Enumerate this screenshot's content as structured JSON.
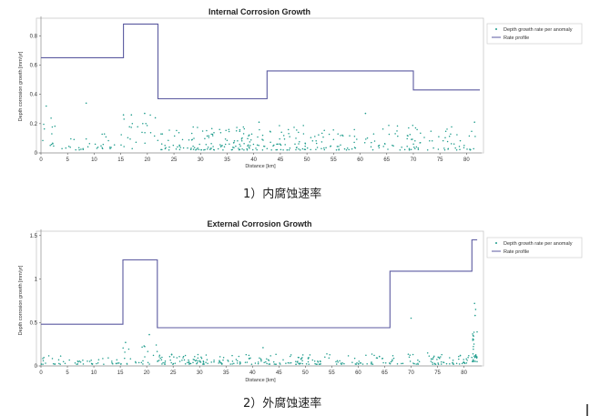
{
  "captions": [
    "1）内腐蚀速率",
    "2）外腐蚀速率"
  ],
  "chart_data": [
    {
      "type": "scatter",
      "title": "Internal Corrosion Growth",
      "xlabel": "Distance [km]",
      "ylabel": "Depth corrosion growth [mm/yr]",
      "xlim": [
        0,
        82.5
      ],
      "ylim": [
        0,
        0.92
      ],
      "xticks": [
        0,
        5,
        10,
        15,
        20,
        25,
        30,
        35,
        40,
        45,
        50,
        55,
        60,
        65,
        70,
        75,
        80
      ],
      "xtick_labels": [
        "0",
        "5",
        "10",
        "15",
        "20",
        "25",
        "30",
        "35",
        "40",
        "45",
        "50",
        "55",
        "60",
        "65",
        "70",
        "75",
        "80"
      ],
      "yticks": [
        0,
        0.2,
        0.4,
        0.6,
        0.8
      ],
      "ytick_labels": [
        "0",
        "0.2",
        "0.4",
        "0.6",
        "0.8"
      ],
      "legend": [
        "Depth growth rate per anomaly",
        "Rate profile"
      ],
      "legend_position": "right",
      "colors": {
        "scatter": "#1e9c8c",
        "profile": "#5b5aa0"
      },
      "rate_profile": {
        "x": [
          0,
          15.5,
          15.5,
          22,
          22,
          42.5,
          42.5,
          70,
          70,
          82.5
        ],
        "y": [
          0.65,
          0.65,
          0.88,
          0.88,
          0.37,
          0.37,
          0.56,
          0.56,
          0.43,
          0.43
        ]
      },
      "scatter_clusters": [
        [
          0,
          3,
          0.04,
          0.24,
          12
        ],
        [
          3,
          9,
          0.02,
          0.12,
          14
        ],
        [
          9,
          15,
          0.03,
          0.14,
          16
        ],
        [
          15,
          22,
          0.03,
          0.26,
          22
        ],
        [
          22,
          28,
          0.02,
          0.16,
          26
        ],
        [
          28,
          42,
          0.02,
          0.18,
          110
        ],
        [
          42,
          50,
          0.02,
          0.2,
          50
        ],
        [
          50,
          60,
          0.02,
          0.16,
          45
        ],
        [
          60,
          70,
          0.02,
          0.2,
          40
        ],
        [
          70,
          82,
          0.02,
          0.2,
          50
        ]
      ],
      "scatter_extra": [
        [
          1,
          0.32
        ],
        [
          8.5,
          0.34
        ],
        [
          15.5,
          0.26
        ],
        [
          17,
          0.26
        ],
        [
          19.5,
          0.27
        ],
        [
          21.5,
          0.24
        ],
        [
          41,
          0.21
        ],
        [
          61,
          0.27
        ],
        [
          81.5,
          0.21
        ]
      ]
    },
    {
      "type": "scatter",
      "title": "External Corrosion Growth",
      "xlabel": "Distance [km]",
      "ylabel": "Depth corrosion growth [mm/yr]",
      "xlim": [
        0,
        83
      ],
      "ylim": [
        0,
        1.55
      ],
      "xticks": [
        0,
        5,
        10,
        15,
        20,
        25,
        30,
        35,
        40,
        45,
        50,
        55,
        60,
        65,
        70,
        75,
        80
      ],
      "xtick_labels": [
        "0",
        "5",
        "10",
        "15",
        "20",
        "25",
        "30",
        "35",
        "40",
        "45",
        "50",
        "55",
        "60",
        "65",
        "70",
        "75",
        "80"
      ],
      "yticks": [
        0,
        0.5,
        1,
        1.5
      ],
      "ytick_labels": [
        "0",
        "0.5",
        "1",
        "1.5"
      ],
      "legend": [
        "Depth growth rate per anomaly",
        "Rate profile"
      ],
      "legend_position": "right",
      "colors": {
        "scatter": "#1e9c8c",
        "profile": "#5b5aa0"
      },
      "rate_profile": {
        "x": [
          0,
          15.5,
          15.5,
          22,
          22,
          66,
          66,
          81.5,
          81.5,
          82.5
        ],
        "y": [
          0.48,
          0.48,
          1.22,
          1.22,
          0.44,
          0.44,
          1.09,
          1.09,
          1.45,
          1.45
        ]
      },
      "scatter_clusters": [
        [
          0,
          5,
          0.02,
          0.14,
          18
        ],
        [
          5,
          15,
          0.02,
          0.1,
          30
        ],
        [
          15,
          22,
          0.02,
          0.26,
          24
        ],
        [
          22,
          35,
          0.02,
          0.14,
          80
        ],
        [
          35,
          50,
          0.02,
          0.14,
          70
        ],
        [
          50,
          65,
          0.02,
          0.14,
          60
        ],
        [
          65,
          78,
          0.02,
          0.16,
          55
        ],
        [
          78,
          81.5,
          0.02,
          0.14,
          20
        ],
        [
          81.5,
          82.5,
          0.05,
          0.5,
          30
        ]
      ],
      "scatter_extra": [
        [
          16,
          0.27
        ],
        [
          19.5,
          0.23
        ],
        [
          20.5,
          0.36
        ],
        [
          70,
          0.55
        ],
        [
          82,
          0.72
        ],
        [
          82.2,
          0.65
        ],
        [
          82.1,
          0.58
        ],
        [
          42,
          0.21
        ]
      ]
    }
  ]
}
